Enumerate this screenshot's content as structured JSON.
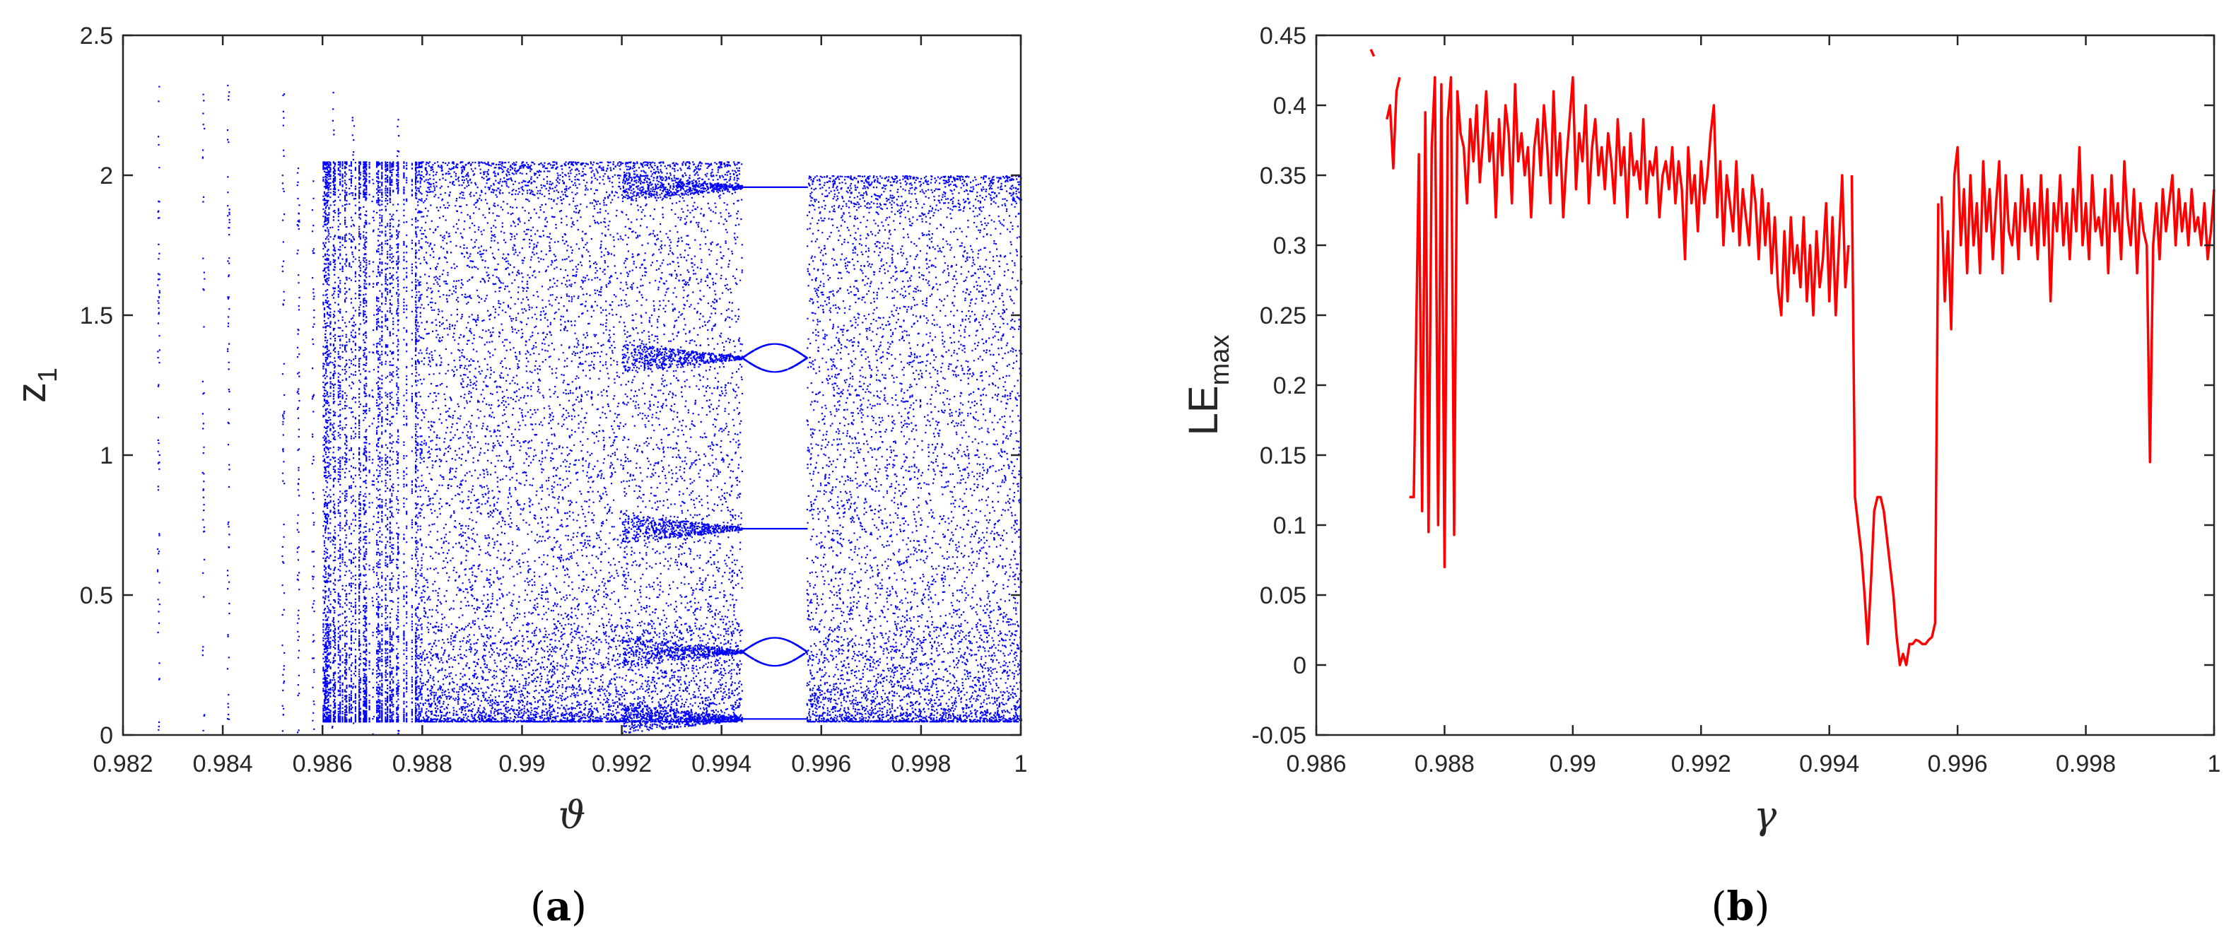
{
  "chart_data": [
    {
      "type": "scatter",
      "panel_label": "(a)",
      "panel_letter": "a",
      "xlabel": "ϑ",
      "ylabel_main": "z",
      "ylabel_sub": "1",
      "xlim": [
        0.982,
        1.0
      ],
      "ylim": [
        0,
        2.5
      ],
      "xticks": [
        "0.982",
        "0.984",
        "0.986",
        "0.988",
        "0.99",
        "0.992",
        "0.994",
        "0.996",
        "0.998",
        "1"
      ],
      "xtick_values": [
        0.982,
        0.984,
        0.986,
        0.988,
        0.99,
        0.992,
        0.994,
        0.996,
        0.998,
        1.0
      ],
      "yticks": [
        "0",
        "0.5",
        "1",
        "1.5",
        "2",
        "2.5"
      ],
      "ytick_values": [
        0,
        0.5,
        1,
        1.5,
        2,
        2.5
      ],
      "grid": false,
      "color": "#0000ff",
      "sparse_region": {
        "x": [
          0.9827,
          0.9836,
          0.9841,
          0.9852,
          0.9855,
          0.9858,
          0.9862,
          0.9866,
          0.987,
          0.9875
        ],
        "zmax": [
          2.33,
          2.33,
          2.34,
          2.38,
          2.05,
          2.05,
          2.35,
          2.27,
          2.05,
          2.27
        ]
      },
      "chaotic_band": {
        "x": [
          0.986,
          0.9944
        ],
        "zmin": 0.05,
        "zmax": 2.05
      },
      "periodic_window": {
        "x": [
          0.9944,
          0.9957
        ],
        "branches": [
          1.96,
          1.35,
          0.74,
          0.3,
          0.06
        ]
      },
      "chaotic_band_right": {
        "x": [
          0.9957,
          1.0
        ],
        "zmin": 0.05,
        "zmax": 2.0
      }
    },
    {
      "type": "line",
      "panel_label": "(b)",
      "panel_letter": "b",
      "xlabel": "γ",
      "ylabel_main": "LE",
      "ylabel_sub": "max",
      "xlim": [
        0.986,
        1.0
      ],
      "ylim": [
        -0.05,
        0.45
      ],
      "xticks": [
        "0.986",
        "0.988",
        "0.99",
        "0.992",
        "0.994",
        "0.996",
        "0.998",
        "1"
      ],
      "xtick_values": [
        0.986,
        0.988,
        0.99,
        0.992,
        0.994,
        0.996,
        0.998,
        1.0
      ],
      "yticks": [
        "-0.05",
        "0",
        "0.05",
        "0.1",
        "0.15",
        "0.2",
        "0.25",
        "0.3",
        "0.35",
        "0.4",
        "0.45"
      ],
      "ytick_values": [
        -0.05,
        0,
        0.05,
        0.1,
        0.15,
        0.2,
        0.25,
        0.3,
        0.35,
        0.4,
        0.45
      ],
      "grid": false,
      "color": "#ff0000",
      "segments": [
        {
          "x": [
            0.98685,
            0.9869
          ],
          "y": [
            0.44,
            0.435
          ]
        },
        {
          "x": [
            0.9871,
            0.98715,
            0.9872,
            0.98725,
            0.9873
          ],
          "y": [
            0.39,
            0.4,
            0.355,
            0.41,
            0.42
          ]
        },
        {
          "x": [
            0.98745,
            0.98752,
            0.9876,
            0.98765,
            0.9877,
            0.98775,
            0.9878,
            0.98785,
            0.9879,
            0.98795,
            0.988,
            0.98805,
            0.9881,
            0.98815,
            0.9882,
            0.98825,
            0.9883,
            0.98835,
            0.9884,
            0.98845,
            0.9885,
            0.98855,
            0.9886,
            0.98865,
            0.9887,
            0.98875,
            0.9888,
            0.98885,
            0.9889,
            0.98895,
            0.989,
            0.98905,
            0.9891,
            0.98915,
            0.9892,
            0.98925,
            0.9893,
            0.98935,
            0.9894,
            0.98945,
            0.9895,
            0.98955,
            0.9896,
            0.98965,
            0.9897,
            0.98975,
            0.9898,
            0.98985,
            0.9899,
            0.98995,
            0.99,
            0.99005,
            0.9901,
            0.99015,
            0.9902,
            0.99025,
            0.9903,
            0.99035,
            0.9904,
            0.99045,
            0.9905,
            0.99055,
            0.9906,
            0.99065,
            0.9907,
            0.99075,
            0.9908,
            0.99085,
            0.9909,
            0.99095,
            0.991,
            0.99105,
            0.9911,
            0.99115,
            0.9912,
            0.99125,
            0.9913,
            0.99135,
            0.9914,
            0.99145,
            0.9915,
            0.99155,
            0.9916,
            0.99165,
            0.9917,
            0.99175,
            0.9918,
            0.99185,
            0.9919,
            0.99195,
            0.992,
            0.99205,
            0.9921,
            0.99215,
            0.9922,
            0.99225,
            0.9923,
            0.99235,
            0.9924,
            0.99245,
            0.9925,
            0.99255,
            0.9926,
            0.99265,
            0.9927,
            0.99275,
            0.9928,
            0.99285,
            0.9929,
            0.99295,
            0.993,
            0.99305,
            0.9931,
            0.99315,
            0.9932,
            0.99325,
            0.9933,
            0.99335,
            0.9934,
            0.99345,
            0.9935,
            0.99355,
            0.9936,
            0.99365,
            0.9937,
            0.99375,
            0.9938,
            0.99385,
            0.9939,
            0.99395,
            0.994,
            0.99405,
            0.9941,
            0.99415,
            0.9942,
            0.99425,
            0.9943
          ],
          "y": [
            0.12,
            0.12,
            0.365,
            0.11,
            0.395,
            0.095,
            0.37,
            0.42,
            0.1,
            0.415,
            0.07,
            0.39,
            0.42,
            0.093,
            0.41,
            0.38,
            0.37,
            0.33,
            0.39,
            0.36,
            0.4,
            0.345,
            0.375,
            0.41,
            0.36,
            0.38,
            0.32,
            0.39,
            0.35,
            0.4,
            0.38,
            0.33,
            0.415,
            0.36,
            0.38,
            0.35,
            0.37,
            0.32,
            0.37,
            0.39,
            0.35,
            0.4,
            0.37,
            0.33,
            0.41,
            0.35,
            0.38,
            0.32,
            0.36,
            0.39,
            0.42,
            0.34,
            0.38,
            0.36,
            0.4,
            0.33,
            0.37,
            0.39,
            0.35,
            0.37,
            0.34,
            0.38,
            0.36,
            0.33,
            0.39,
            0.35,
            0.37,
            0.32,
            0.38,
            0.35,
            0.36,
            0.34,
            0.39,
            0.33,
            0.36,
            0.35,
            0.37,
            0.32,
            0.35,
            0.36,
            0.34,
            0.37,
            0.33,
            0.36,
            0.34,
            0.29,
            0.37,
            0.33,
            0.35,
            0.31,
            0.36,
            0.33,
            0.35,
            0.38,
            0.4,
            0.32,
            0.36,
            0.3,
            0.35,
            0.33,
            0.31,
            0.36,
            0.3,
            0.34,
            0.32,
            0.3,
            0.35,
            0.33,
            0.29,
            0.34,
            0.3,
            0.33,
            0.28,
            0.32,
            0.27,
            0.25,
            0.31,
            0.26,
            0.32,
            0.28,
            0.3,
            0.27,
            0.32,
            0.26,
            0.3,
            0.25,
            0.31,
            0.27,
            0.29,
            0.33,
            0.26,
            0.32,
            0.25,
            0.3,
            0.35,
            0.27,
            0.3
          ]
        },
        {
          "x": [
            0.99435,
            0.9944,
            0.99445,
            0.9945,
            0.99455,
            0.9946,
            0.99465,
            0.9947,
            0.99475,
            0.9948,
            0.99485,
            0.9949,
            0.99495,
            0.995,
            0.99505,
            0.9951,
            0.99515,
            0.9952,
            0.99525,
            0.9953,
            0.99535,
            0.9954,
            0.99545,
            0.9955,
            0.99555,
            0.9956,
            0.99565,
            0.9957
          ],
          "y": [
            0.35,
            0.12,
            0.1,
            0.08,
            0.05,
            0.015,
            0.06,
            0.11,
            0.12,
            0.12,
            0.11,
            0.09,
            0.07,
            0.05,
            0.02,
            0.0,
            0.008,
            0.0,
            0.015,
            0.015,
            0.018,
            0.017,
            0.015,
            0.015,
            0.018,
            0.02,
            0.03,
            0.33
          ]
        },
        {
          "x": [
            0.99575,
            0.9958,
            0.99585,
            0.9959,
            0.99595,
            0.996,
            0.99605,
            0.9961,
            0.99615,
            0.9962,
            0.99625,
            0.9963,
            0.99635,
            0.9964,
            0.99645,
            0.9965,
            0.99655,
            0.9966,
            0.99665,
            0.9967,
            0.99675,
            0.9968,
            0.99685,
            0.9969,
            0.99695,
            0.997,
            0.99705,
            0.9971,
            0.99715,
            0.9972,
            0.99725,
            0.9973,
            0.99735,
            0.9974,
            0.99745,
            0.9975,
            0.99755,
            0.9976,
            0.99765,
            0.9977,
            0.99775,
            0.9978,
            0.99785,
            0.9979,
            0.99795,
            0.998,
            0.99805,
            0.9981,
            0.99815,
            0.9982,
            0.99825,
            0.9983,
            0.99835,
            0.9984,
            0.99845,
            0.9985,
            0.99855,
            0.9986,
            0.99865,
            0.9987,
            0.99875,
            0.9988,
            0.99885,
            0.9989,
            0.99895,
            0.999,
            0.99905,
            0.9991,
            0.99915,
            0.9992,
            0.99925,
            0.9993,
            0.99935,
            0.9994,
            0.99945,
            0.9995,
            0.99955,
            0.9996,
            0.99965,
            0.9997,
            0.99975,
            0.9998,
            0.99985,
            0.9999,
            0.99995,
            1.0
          ],
          "y": [
            0.335,
            0.26,
            0.31,
            0.24,
            0.35,
            0.37,
            0.3,
            0.34,
            0.28,
            0.35,
            0.3,
            0.33,
            0.28,
            0.36,
            0.31,
            0.34,
            0.29,
            0.33,
            0.36,
            0.28,
            0.35,
            0.31,
            0.3,
            0.33,
            0.29,
            0.35,
            0.31,
            0.34,
            0.3,
            0.33,
            0.29,
            0.35,
            0.3,
            0.34,
            0.26,
            0.33,
            0.31,
            0.35,
            0.3,
            0.33,
            0.29,
            0.34,
            0.31,
            0.37,
            0.3,
            0.33,
            0.29,
            0.35,
            0.31,
            0.32,
            0.3,
            0.34,
            0.28,
            0.35,
            0.31,
            0.33,
            0.29,
            0.36,
            0.32,
            0.3,
            0.34,
            0.28,
            0.33,
            0.31,
            0.3,
            0.145,
            0.3,
            0.33,
            0.29,
            0.34,
            0.31,
            0.33,
            0.35,
            0.3,
            0.34,
            0.31,
            0.33,
            0.3,
            0.34,
            0.31,
            0.32,
            0.3,
            0.33,
            0.29,
            0.31,
            0.34
          ]
        }
      ]
    }
  ]
}
